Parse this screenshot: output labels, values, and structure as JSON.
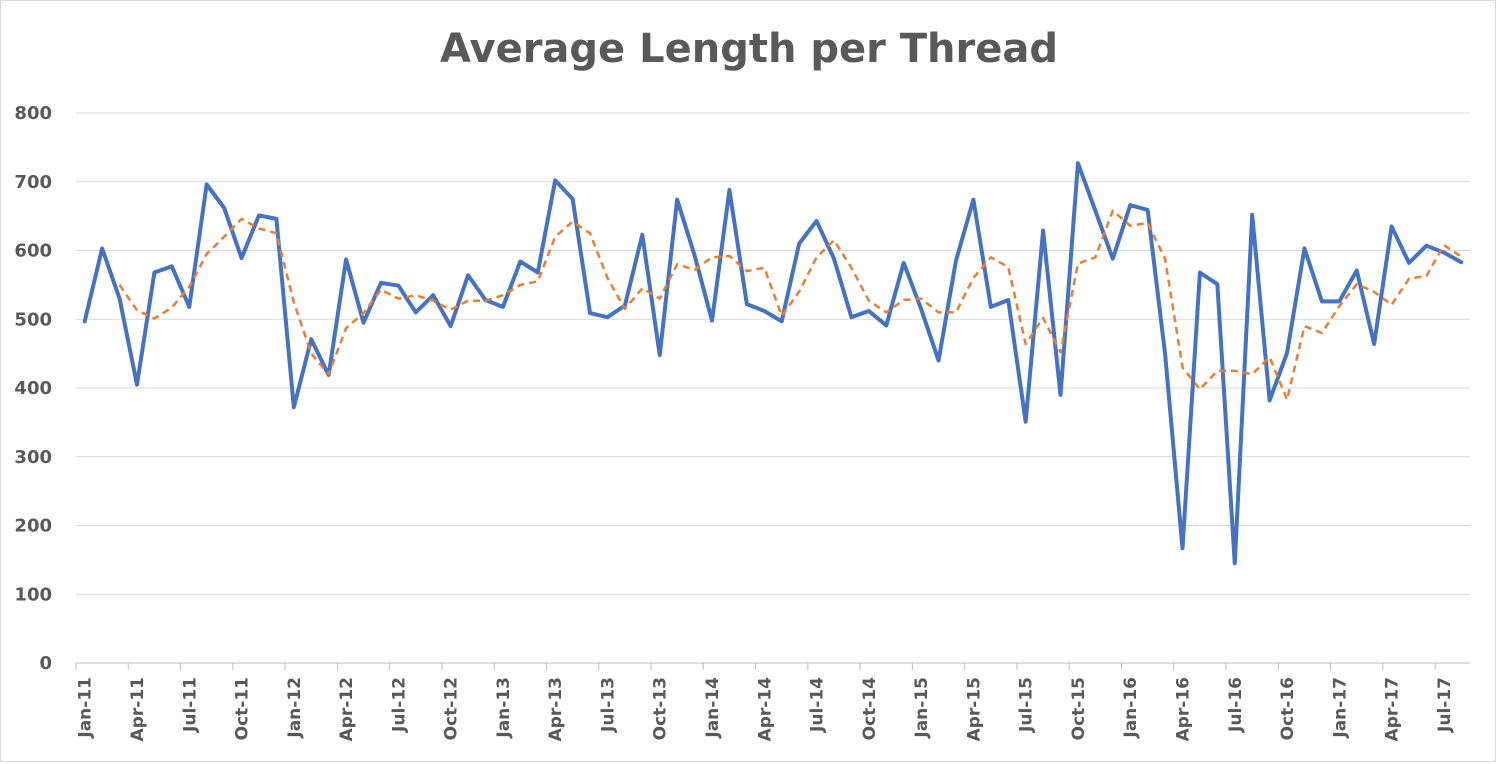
{
  "chart_data": {
    "type": "line",
    "title": "Average Length per Thread",
    "xlabel": "",
    "ylabel": "",
    "ylim": [
      0,
      800
    ],
    "yticks": [
      0,
      100,
      200,
      300,
      400,
      500,
      600,
      700,
      800
    ],
    "grid": true,
    "legend": "none",
    "x": [
      "Jan-11",
      "Feb-11",
      "Mar-11",
      "Apr-11",
      "May-11",
      "Jun-11",
      "Jul-11",
      "Aug-11",
      "Sep-11",
      "Oct-11",
      "Nov-11",
      "Dec-11",
      "Jan-12",
      "Feb-12",
      "Mar-12",
      "Apr-12",
      "May-12",
      "Jun-12",
      "Jul-12",
      "Aug-12",
      "Sep-12",
      "Oct-12",
      "Nov-12",
      "Dec-12",
      "Jan-13",
      "Feb-13",
      "Mar-13",
      "Apr-13",
      "May-13",
      "Jun-13",
      "Jul-13",
      "Aug-13",
      "Sep-13",
      "Oct-13",
      "Nov-13",
      "Dec-13",
      "Jan-14",
      "Feb-14",
      "Mar-14",
      "Apr-14",
      "May-14",
      "Jun-14",
      "Jul-14",
      "Aug-14",
      "Sep-14",
      "Oct-14",
      "Nov-14",
      "Dec-14",
      "Jan-15",
      "Feb-15",
      "Mar-15",
      "Apr-15",
      "May-15",
      "Jun-15",
      "Jul-15",
      "Aug-15",
      "Sep-15",
      "Oct-15",
      "Nov-15",
      "Dec-15",
      "Jan-16",
      "Feb-16",
      "Mar-16",
      "Apr-16",
      "May-16",
      "Jun-16",
      "Jul-16",
      "Aug-16",
      "Sep-16",
      "Oct-16",
      "Nov-16",
      "Dec-16",
      "Jan-17",
      "Feb-17",
      "Mar-17",
      "Apr-17",
      "May-17",
      "Jun-17",
      "Jul-17",
      "Aug-17"
    ],
    "x_tick_labels": [
      "Jan-11",
      "Apr-11",
      "Jul-11",
      "Oct-11",
      "Jan-12",
      "Apr-12",
      "Jul-12",
      "Oct-12",
      "Jan-13",
      "Apr-13",
      "Jul-13",
      "Oct-13",
      "Jan-14",
      "Apr-14",
      "Jul-14",
      "Oct-14",
      "Jan-15",
      "Apr-15",
      "Jul-15",
      "Oct-15",
      "Jan-16",
      "Apr-16",
      "Jul-16",
      "Oct-16",
      "Jan-17",
      "Apr-17",
      "Jul-17"
    ],
    "series": [
      {
        "style": "solid",
        "color": "#4472c4",
        "values": [
          497,
          603,
          530,
          405,
          568,
          577,
          518,
          696,
          662,
          589,
          651,
          646,
          372,
          471,
          419,
          587,
          495,
          553,
          549,
          510,
          535,
          490,
          564,
          528,
          518,
          584,
          568,
          702,
          675,
          509,
          503,
          520,
          623,
          448,
          674,
          593,
          498,
          688,
          522,
          512,
          497,
          610,
          643,
          588,
          503,
          512,
          491,
          582,
          515,
          440,
          585,
          674,
          518,
          528,
          351,
          629,
          390,
          727,
          658,
          588,
          666,
          659,
          450,
          167,
          568,
          551,
          145,
          652,
          382,
          451,
          603,
          526,
          526,
          571,
          464,
          635,
          582,
          607,
          597,
          583
        ]
      },
      {
        "style": "dashed",
        "color": "#ed7d31",
        "values": [
          null,
          null,
          550,
          513,
          501,
          517,
          547,
          595,
          620,
          646,
          632,
          625,
          525,
          450,
          420,
          487,
          509,
          543,
          530,
          535,
          527,
          514,
          527,
          527,
          535,
          550,
          555,
          620,
          642,
          625,
          560,
          515,
          545,
          530,
          580,
          572,
          590,
          592,
          570,
          575,
          505,
          540,
          590,
          615,
          575,
          527,
          510,
          528,
          530,
          510,
          510,
          560,
          590,
          576,
          464,
          502,
          452,
          581,
          590,
          658,
          636,
          640,
          588,
          430,
          398,
          425,
          425,
          420,
          445,
          383,
          490,
          480,
          519,
          551,
          540,
          521,
          559,
          563,
          608,
          591
        ]
      }
    ]
  }
}
